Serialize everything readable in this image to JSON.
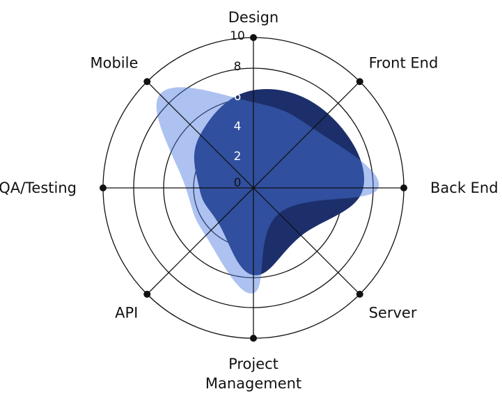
{
  "chart_data": {
    "type": "radar",
    "axes": [
      "Design",
      "Front End",
      "Back End",
      "Server",
      "Project Management",
      "API",
      "QA/Testing",
      "Mobile"
    ],
    "axis_label_lines": [
      [
        "Design"
      ],
      [
        "Front End"
      ],
      [
        "Back End"
      ],
      [
        "Server"
      ],
      [
        "Project",
        "Management"
      ],
      [
        "API"
      ],
      [
        "QA/Testing"
      ],
      [
        "Mobile"
      ]
    ],
    "rlim": [
      0,
      10
    ],
    "ticks": [
      "0",
      "2",
      "4",
      "6",
      "8",
      "10"
    ],
    "grid": true,
    "series": [
      {
        "values": [
          6.5,
          7.0,
          7.3,
          4.5,
          5.8,
          3.3,
          3.6,
          5.0
        ],
        "color": "#1c2f6b",
        "opacity": 1.0
      },
      {
        "values": [
          5.7,
          5.6,
          8.3,
          2.4,
          7.0,
          4.5,
          4.5,
          8.8
        ],
        "color": "#4a78dd",
        "opacity": 0.45
      }
    ]
  }
}
